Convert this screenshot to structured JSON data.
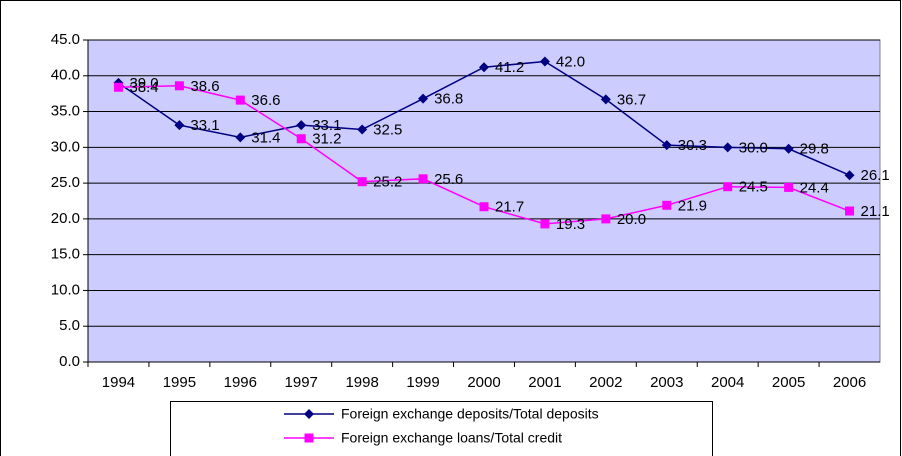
{
  "chart_data": {
    "type": "line",
    "categories": [
      "1994",
      "1995",
      "1996",
      "1997",
      "1998",
      "1999",
      "2000",
      "2001",
      "2002",
      "2003",
      "2004",
      "2005",
      "2006"
    ],
    "series": [
      {
        "name": "Foreign exchange deposits/Total deposits",
        "color": "#000080",
        "marker": "diamond",
        "values": [
          39.0,
          33.1,
          31.4,
          33.1,
          32.5,
          36.8,
          41.2,
          42.0,
          36.7,
          30.3,
          30.0,
          29.8,
          26.1
        ],
        "value_labels": [
          "39.0",
          "33.1",
          "31.4",
          "33.1",
          "32.5",
          "36.8",
          "41.2",
          "42.0",
          "36.7",
          "30.3",
          "30.0",
          "29.8",
          "26.1"
        ]
      },
      {
        "name": "Foreign exchange loans/Total credit",
        "color": "#ff00ff",
        "marker": "square",
        "values": [
          38.4,
          38.6,
          36.6,
          31.2,
          25.2,
          25.6,
          21.7,
          19.3,
          20.0,
          21.9,
          24.5,
          24.4,
          21.1
        ],
        "value_labels": [
          "38.4",
          "38.6",
          "36.6",
          "31.2",
          "25.2",
          "25.6",
          "21.7",
          "19.3",
          "20.0",
          "21.9",
          "24.5",
          "24.4",
          "21.1"
        ]
      }
    ],
    "ylim": [
      0,
      45
    ],
    "yticks": [
      {
        "value": 0,
        "label": "0.0"
      },
      {
        "value": 5,
        "label": "5.0"
      },
      {
        "value": 10,
        "label": "10.0"
      },
      {
        "value": 15,
        "label": "15.0"
      },
      {
        "value": 20,
        "label": "20.0"
      },
      {
        "value": 25,
        "label": "25.0"
      },
      {
        "value": 30,
        "label": "30.0"
      },
      {
        "value": 35,
        "label": "35.0"
      },
      {
        "value": 40,
        "label": "40.0"
      },
      {
        "value": 45,
        "label": "45.0"
      }
    ],
    "grid": true,
    "background": "#ccccff",
    "legend": "bottom"
  }
}
